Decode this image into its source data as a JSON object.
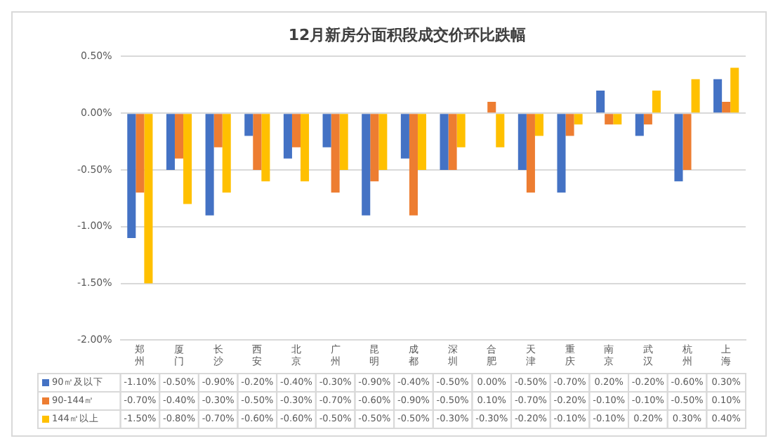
{
  "chart_data": {
    "type": "bar",
    "title": "12月新房分面积段成交价环比跌幅",
    "categories": [
      "郑州",
      "厦门",
      "长沙",
      "西安",
      "北京",
      "广州",
      "昆明",
      "成都",
      "深圳",
      "合肥",
      "天津",
      "重庆",
      "南京",
      "武汉",
      "杭州",
      "上海"
    ],
    "series": [
      {
        "name": "90㎡及以下",
        "color": "#4472c4",
        "values": [
          -1.1,
          -0.5,
          -0.9,
          -0.2,
          -0.4,
          -0.3,
          -0.9,
          -0.4,
          -0.5,
          0.0,
          -0.5,
          -0.7,
          0.2,
          -0.2,
          -0.6,
          0.3
        ],
        "value_labels": [
          "-1.10%",
          "-0.50%",
          "-0.90%",
          "-0.20%",
          "-0.40%",
          "-0.30%",
          "-0.90%",
          "-0.40%",
          "-0.50%",
          "0.00%",
          "-0.50%",
          "-0.70%",
          "0.20%",
          "-0.20%",
          "-0.60%",
          "0.30%"
        ]
      },
      {
        "name": "90-144㎡",
        "color": "#ed7d31",
        "values": [
          -0.7,
          -0.4,
          -0.3,
          -0.5,
          -0.3,
          -0.7,
          -0.6,
          -0.9,
          -0.5,
          0.1,
          -0.7,
          -0.2,
          -0.1,
          -0.1,
          -0.5,
          0.1
        ],
        "value_labels": [
          "-0.70%",
          "-0.40%",
          "-0.30%",
          "-0.50%",
          "-0.30%",
          "-0.70%",
          "-0.60%",
          "-0.90%",
          "-0.50%",
          "0.10%",
          "-0.70%",
          "-0.20%",
          "-0.10%",
          "-0.10%",
          "-0.50%",
          "0.10%"
        ]
      },
      {
        "name": "144㎡以上",
        "color": "#ffc000",
        "values": [
          -1.5,
          -0.8,
          -0.7,
          -0.6,
          -0.6,
          -0.5,
          -0.5,
          -0.5,
          -0.3,
          -0.3,
          -0.2,
          -0.1,
          -0.1,
          0.2,
          0.3,
          0.4
        ],
        "value_labels": [
          "-1.50%",
          "-0.80%",
          "-0.70%",
          "-0.60%",
          "-0.60%",
          "-0.50%",
          "-0.50%",
          "-0.50%",
          "-0.30%",
          "-0.30%",
          "-0.20%",
          "-0.10%",
          "-0.10%",
          "0.20%",
          "0.30%",
          "0.40%"
        ]
      }
    ],
    "ylim": [
      -2,
      0.5
    ],
    "yticks": [
      {
        "value": -2,
        "label": "-2.00%"
      },
      {
        "value": -1.5,
        "label": "-1.50%"
      },
      {
        "value": -1,
        "label": "-1.00%"
      },
      {
        "value": -0.5,
        "label": "-0.50%"
      },
      {
        "value": 0,
        "label": "0.00%"
      },
      {
        "value": 0.5,
        "label": "0.50%"
      }
    ],
    "grid": "y",
    "legend": "bottom"
  }
}
